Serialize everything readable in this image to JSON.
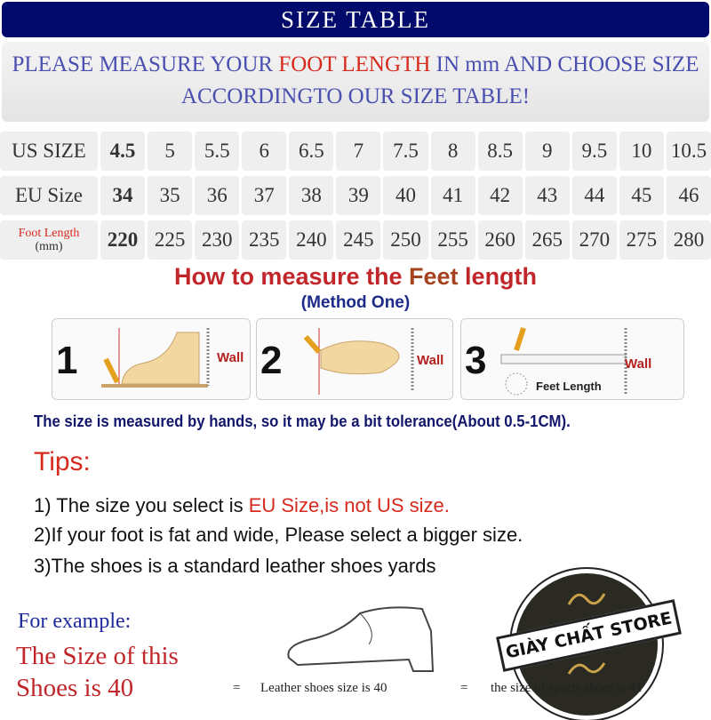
{
  "header": {
    "title": "SIZE TABLE"
  },
  "intro": {
    "part1": "PLEASE MEASURE YOUR ",
    "highlight": "FOOT LENGTH",
    "part2": " IN mm AND CHOOSE SIZE",
    "line2": "ACCORDINGTO OUR SIZE TABLE!"
  },
  "table": {
    "us_label": "US SIZE",
    "eu_label": "EU Size",
    "foot_label": "Foot Length",
    "foot_unit": "(mm)",
    "us": [
      "4.5",
      "5",
      "5.5",
      "6",
      "6.5",
      "7",
      "7.5",
      "8",
      "8.5",
      "9",
      "9.5",
      "10",
      "10.5"
    ],
    "eu": [
      "34",
      "35",
      "36",
      "37",
      "38",
      "39",
      "40",
      "41",
      "42",
      "43",
      "44",
      "45",
      "46"
    ],
    "foot": [
      "220",
      "225",
      "230",
      "235",
      "240",
      "245",
      "250",
      "255",
      "260",
      "265",
      "270",
      "275",
      "280"
    ]
  },
  "howto": {
    "title_a": "How to measure the ",
    "title_b": "Feet",
    "title_c": " length",
    "method": "(Method One)",
    "steps": [
      {
        "num": "1",
        "wall": "Wall"
      },
      {
        "num": "2",
        "wall": "Wall"
      },
      {
        "num": "3",
        "wall": "Wall",
        "extra": "Feet Length"
      }
    ],
    "note": "The size is measured by hands, so it may be a bit tolerance(About 0.5-1CM)."
  },
  "tips": {
    "title": "Tips:",
    "t1a": "1) The size you select is ",
    "t1b": "EU Size,is not US size.",
    "t2": "2)If your foot is fat and wide, Please select a bigger size.",
    "t3": "3)The shoes is a standard leather shoes yards"
  },
  "example": {
    "label": "For example:",
    "line1": "The Size of this",
    "line2": "Shoes is 40",
    "eq": "=",
    "leather": "Leather shoes size is 40",
    "sports": "the size of sports shoes is 41"
  },
  "logo": {
    "text": "GIÀY CHẤT STORE"
  },
  "colors": {
    "navy": "#020a6b",
    "red": "#d62a1e",
    "blue": "#4a4fb0"
  }
}
